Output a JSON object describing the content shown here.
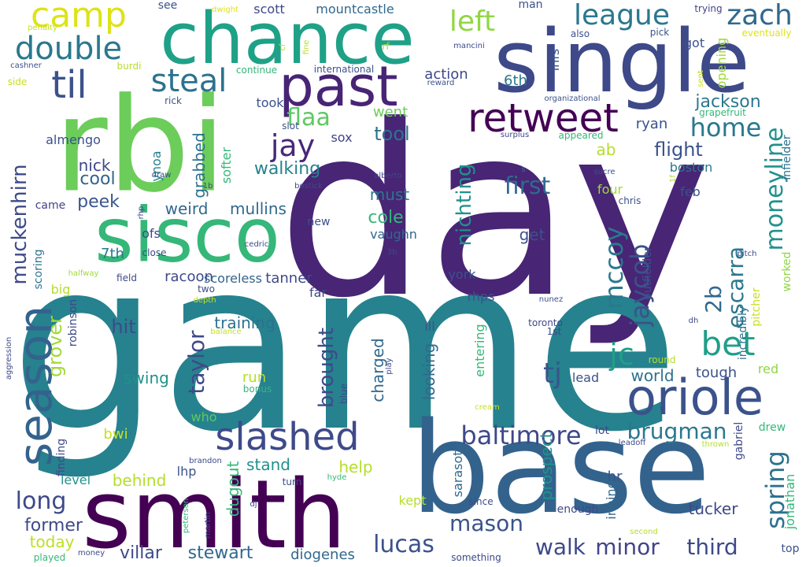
{
  "words": [
    {
      "text": "day",
      "color": "#482575"
    },
    {
      "text": "game",
      "color": "#26828e"
    },
    {
      "text": "base",
      "color": "#33638d"
    },
    {
      "text": "rbi",
      "color": "#6ccd5a"
    },
    {
      "text": "single",
      "color": "#3e4989"
    },
    {
      "text": "chance",
      "color": "#1fa187"
    },
    {
      "text": "smith",
      "color": "#440154"
    },
    {
      "text": "sisco",
      "color": "#35b779"
    },
    {
      "text": "past",
      "color": "#482475"
    },
    {
      "text": "oriole",
      "color": "#3b528b"
    },
    {
      "text": "retweet",
      "color": "#440154"
    },
    {
      "text": "slashed",
      "color": "#3e4a89"
    },
    {
      "text": "season",
      "color": "#33638d"
    },
    {
      "text": "camp",
      "color": "#dde318"
    },
    {
      "text": "double",
      "color": "#2a788e"
    },
    {
      "text": "til",
      "color": "#3b528b"
    },
    {
      "text": "steal",
      "color": "#2c728e"
    },
    {
      "text": "league",
      "color": "#2a788e"
    },
    {
      "text": "left",
      "color": "#90d743"
    },
    {
      "text": "zach",
      "color": "#31688e"
    },
    {
      "text": "home",
      "color": "#2a788e"
    },
    {
      "text": "jay",
      "color": "#482878"
    },
    {
      "text": "flaa",
      "color": "#5ec962"
    },
    {
      "text": "bet",
      "color": "#1f9e89"
    },
    {
      "text": "moneyline",
      "color": "#21918c"
    },
    {
      "text": "baltimore",
      "color": "#3e4989"
    },
    {
      "text": "brugman",
      "color": "#2a788e"
    },
    {
      "text": "spring",
      "color": "#2c728e"
    },
    {
      "text": "jc",
      "color": "#1f9e89"
    },
    {
      "text": "mccoy",
      "color": "#2a788e"
    },
    {
      "text": "jaycob",
      "color": "#3b528b"
    },
    {
      "text": "escarra",
      "color": "#2a788e"
    },
    {
      "text": "muckenhirn",
      "color": "#3e4a89"
    },
    {
      "text": "first",
      "color": "#31688e"
    },
    {
      "text": "nichting",
      "color": "#21918c"
    },
    {
      "text": "tj",
      "color": "#39568c"
    },
    {
      "text": "lucas",
      "color": "#3b528b"
    },
    {
      "text": "mason",
      "color": "#3b528b"
    },
    {
      "text": "walk",
      "color": "#3e4989"
    },
    {
      "text": "minor",
      "color": "#414487"
    },
    {
      "text": "third",
      "color": "#3e4989"
    },
    {
      "text": "brought",
      "color": "#3e4a89"
    },
    {
      "text": "taylor",
      "color": "#3e4989"
    },
    {
      "text": "grover",
      "color": "#a0da39"
    },
    {
      "text": "long",
      "color": "#3e4989"
    },
    {
      "text": "2b",
      "color": "#31688e"
    },
    {
      "text": "jackson",
      "color": "#2a788e"
    },
    {
      "text": "flight",
      "color": "#3b528b"
    },
    {
      "text": "walking",
      "color": "#26828e"
    },
    {
      "text": "tool",
      "color": "#2c728e"
    },
    {
      "text": "went",
      "color": "#6ccd5a"
    },
    {
      "text": "took",
      "color": "#3b528b"
    },
    {
      "text": "sox",
      "color": "#414487"
    },
    {
      "text": "ryan",
      "color": "#3b528b"
    },
    {
      "text": "nick",
      "color": "#3e4989"
    },
    {
      "text": "cool",
      "color": "#33638d"
    },
    {
      "text": "almengo",
      "color": "#3b528b"
    },
    {
      "text": "peek",
      "color": "#39568c"
    },
    {
      "text": "weird",
      "color": "#31688e"
    },
    {
      "text": "mullins",
      "color": "#31688e"
    },
    {
      "text": "grabbed",
      "color": "#2c728e"
    },
    {
      "text": "softer",
      "color": "#35b779"
    },
    {
      "text": "ynoa",
      "color": "#26828e"
    },
    {
      "text": "must",
      "color": "#2a788e"
    },
    {
      "text": "cole",
      "color": "#35b779"
    },
    {
      "text": "vaughn",
      "color": "#31688e"
    },
    {
      "text": "get",
      "color": "#3b528b"
    },
    {
      "text": "6th",
      "color": "#2a788e"
    },
    {
      "text": "action",
      "color": "#3e4989"
    },
    {
      "text": "infs",
      "color": "#3b528b"
    },
    {
      "text": "got",
      "color": "#3b528b"
    },
    {
      "text": "opening",
      "color": "#a0da39"
    },
    {
      "text": "ab",
      "color": "#b5de2b"
    },
    {
      "text": "boston",
      "color": "#2a788e"
    },
    {
      "text": "feb",
      "color": "#3b528b"
    },
    {
      "text": "four",
      "color": "#a0da39"
    },
    {
      "text": "chris",
      "color": "#3b528b"
    },
    {
      "text": "7th",
      "color": "#2a788e"
    },
    {
      "text": "racoon",
      "color": "#3e4989"
    },
    {
      "text": "scoreless",
      "color": "#33638d"
    },
    {
      "text": "tanner",
      "color": "#3e4989"
    },
    {
      "text": "training",
      "color": "#2c728e"
    },
    {
      "text": "hit",
      "color": "#3e4989"
    },
    {
      "text": "swing",
      "color": "#21918c"
    },
    {
      "text": "run",
      "color": "#b5de2b"
    },
    {
      "text": "stand",
      "color": "#21918c"
    },
    {
      "text": "help",
      "color": "#b5de2b"
    },
    {
      "text": "behind",
      "color": "#b5de2b"
    },
    {
      "text": "level",
      "color": "#21918c"
    },
    {
      "text": "lhp",
      "color": "#3b528b"
    },
    {
      "text": "stewart",
      "color": "#31688e"
    },
    {
      "text": "villar",
      "color": "#3e4989"
    },
    {
      "text": "diogenes",
      "color": "#31688e"
    },
    {
      "text": "former",
      "color": "#3e4989"
    },
    {
      "text": "today",
      "color": "#bddf26"
    },
    {
      "text": "kept",
      "color": "#b5de2b"
    },
    {
      "text": "dugout",
      "color": "#35b779"
    },
    {
      "text": "hr",
      "color": "#3b528b"
    },
    {
      "text": "inning",
      "color": "#31688e"
    },
    {
      "text": "tucker",
      "color": "#3e4989"
    },
    {
      "text": "prospect",
      "color": "#21918c"
    },
    {
      "text": "sarasota",
      "color": "#31688e"
    },
    {
      "text": "looking",
      "color": "#31688e"
    },
    {
      "text": "charged",
      "color": "#31688e"
    },
    {
      "text": "entering",
      "color": "#35b779"
    },
    {
      "text": "ill",
      "color": "#3b528b"
    },
    {
      "text": "far",
      "color": "#3e4989"
    },
    {
      "text": "york",
      "color": "#3b528b"
    },
    {
      "text": "rhps",
      "color": "#3b528b"
    },
    {
      "text": "world",
      "color": "#2c728e"
    },
    {
      "text": "tough",
      "color": "#3b528b"
    },
    {
      "text": "lead",
      "color": "#3b528b"
    },
    {
      "text": "red",
      "color": "#8fd744"
    },
    {
      "text": "outfielder",
      "color": "#3b528b"
    },
    {
      "text": "incredibly",
      "color": "#2c728e"
    },
    {
      "text": "worked",
      "color": "#8fd744"
    },
    {
      "text": "infielder",
      "color": "#2c728e"
    },
    {
      "text": "pitcher",
      "color": "#c8e020"
    },
    {
      "text": "gabriel",
      "color": "#3e4989"
    },
    {
      "text": "drew",
      "color": "#35b779"
    },
    {
      "text": "jonathan",
      "color": "#35b779"
    },
    {
      "text": "top",
      "color": "#3b528b"
    },
    {
      "text": "lot",
      "color": "#3e4989"
    },
    {
      "text": "enough",
      "color": "#3e4989"
    },
    {
      "text": "robinson",
      "color": "#3e4989"
    },
    {
      "text": "big",
      "color": "#b5de2b"
    },
    {
      "text": "came",
      "color": "#414487"
    },
    {
      "text": "scoring",
      "color": "#2c728e"
    },
    {
      "text": "finding",
      "color": "#3e4989"
    },
    {
      "text": "bwi",
      "color": "#c8e020"
    },
    {
      "text": "who",
      "color": "#5ec962"
    },
    {
      "text": "new",
      "color": "#3b528b"
    },
    {
      "text": "ofs",
      "color": "#3e4989"
    },
    {
      "text": "mountcastle",
      "color": "#31688e"
    },
    {
      "text": "scott",
      "color": "#3e4989"
    },
    {
      "text": "see",
      "color": "#3b528b"
    },
    {
      "text": "international",
      "color": "#3b528b"
    },
    {
      "text": "man",
      "color": "#3b528b"
    },
    {
      "text": "also",
      "color": "#3b528b"
    },
    {
      "text": "trying",
      "color": "#414487"
    },
    {
      "text": "eventually",
      "color": "#dde318"
    },
    {
      "text": "pick",
      "color": "#3b528b"
    },
    {
      "text": "grapefruit",
      "color": "#35b779"
    },
    {
      "text": "organizational",
      "color": "#3b528b"
    },
    {
      "text": "reward",
      "color": "#3b528b"
    },
    {
      "text": "continue",
      "color": "#35b779"
    },
    {
      "text": "burdi",
      "color": "#b5de2b"
    },
    {
      "text": "mancini",
      "color": "#3e4989"
    },
    {
      "text": "rf",
      "color": "#a0da39"
    },
    {
      "text": "cf",
      "color": "#b5de2b"
    },
    {
      "text": "fine",
      "color": "#b5de2b"
    },
    {
      "text": "dwight",
      "color": "#dde318"
    },
    {
      "text": "penalty",
      "color": "#c8e020"
    },
    {
      "text": "cashner",
      "color": "#3b528b"
    },
    {
      "text": "side",
      "color": "#c8e020"
    },
    {
      "text": "rick",
      "color": "#3b528b"
    },
    {
      "text": "slot",
      "color": "#3b528b"
    },
    {
      "text": "appeared",
      "color": "#35b779"
    },
    {
      "text": "surplus",
      "color": "#3e4989"
    },
    {
      "text": "sucre",
      "color": "#3b528b"
    },
    {
      "text": "sent",
      "color": "#c8e020"
    },
    {
      "text": "alberto",
      "color": "#3e4989"
    },
    {
      "text": "bostick",
      "color": "#3e4989"
    },
    {
      "text": "draw",
      "color": "#3e4989"
    },
    {
      "text": "1b",
      "color": "#3e4989"
    },
    {
      "text": "1f",
      "color": "#b5de2b"
    },
    {
      "text": "s",
      "color": "#2c728e"
    },
    {
      "text": "rhp",
      "color": "#3e4989"
    },
    {
      "text": "cedric",
      "color": "#3e4989"
    },
    {
      "text": "close",
      "color": "#3e4989"
    },
    {
      "text": "3b",
      "color": "#3e4989"
    },
    {
      "text": "halfway",
      "color": "#a0da39"
    },
    {
      "text": "field",
      "color": "#3e4989"
    },
    {
      "text": "two",
      "color": "#3e4989"
    },
    {
      "text": "depth",
      "color": "#c8e020"
    },
    {
      "text": "nunez",
      "color": "#3b528b"
    },
    {
      "text": "toronto",
      "color": "#3e4989"
    },
    {
      "text": "1st",
      "color": "#3e4989"
    },
    {
      "text": "pitch",
      "color": "#3e4989"
    },
    {
      "text": "dh",
      "color": "#3e4989"
    },
    {
      "text": "round",
      "color": "#b5de2b"
    },
    {
      "text": "balance",
      "color": "#c8e020"
    },
    {
      "text": "aggression",
      "color": "#3e4989"
    },
    {
      "text": "bonus",
      "color": "#35b779"
    },
    {
      "text": "play",
      "color": "#3e4989"
    },
    {
      "text": "blue",
      "color": "#3e4989"
    },
    {
      "text": "cream",
      "color": "#c8e020"
    },
    {
      "text": "v",
      "color": "#3e4989"
    },
    {
      "text": "thrown",
      "color": "#b5de2b"
    },
    {
      "text": "leadoff",
      "color": "#3e4989"
    },
    {
      "text": "brandon",
      "color": "#3e4989"
    },
    {
      "text": "turn",
      "color": "#3e4989"
    },
    {
      "text": "hyde",
      "color": "#35b779"
    },
    {
      "text": "since",
      "color": "#3e4989"
    },
    {
      "text": "peterson",
      "color": "#35b779"
    },
    {
      "text": "martin",
      "color": "#3e4989"
    },
    {
      "text": "dj",
      "color": "#3e4989"
    },
    {
      "text": "second",
      "color": "#b5de2b"
    },
    {
      "text": "money",
      "color": "#3e4989"
    },
    {
      "text": "played",
      "color": "#35b779"
    },
    {
      "text": "something",
      "color": "#3e4989"
    }
  ]
}
